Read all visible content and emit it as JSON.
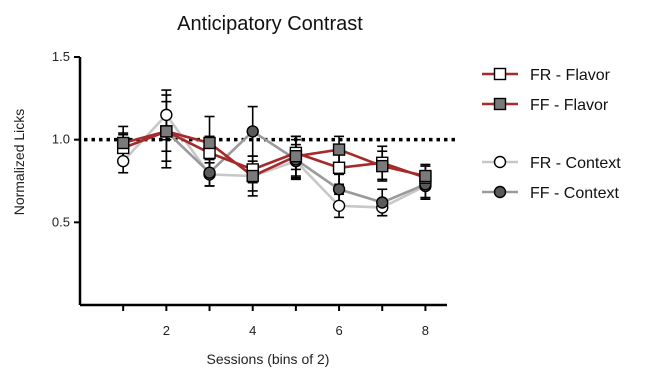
{
  "chart_data": {
    "type": "line",
    "title": "Anticipatory Contrast",
    "xlabel": "Sessions (bins of 2)",
    "ylabel": "Normalized Licks",
    "xlim": [
      0,
      8.5
    ],
    "ylim": [
      0,
      1.5
    ],
    "xticks": [
      2,
      4,
      6,
      8
    ],
    "yticks": [
      0.5,
      1.0,
      1.5
    ],
    "ytick_labels": [
      "0.5",
      "1.0",
      "1.5"
    ],
    "reference_line": 1.0,
    "legend_position": "right",
    "series": [
      {
        "name": "FR - Flavor",
        "line_color": "#a52a2a",
        "marker": "square",
        "marker_fill": "#ffffff",
        "x": [
          1,
          2,
          3,
          4,
          5,
          6,
          7,
          8
        ],
        "y": [
          0.95,
          1.05,
          0.92,
          0.82,
          0.92,
          0.83,
          0.86,
          0.77
        ],
        "err": [
          0.08,
          0.12,
          0.1,
          0.08,
          0.1,
          0.1,
          0.1,
          0.07
        ]
      },
      {
        "name": "FF - Flavor",
        "line_color": "#a52a2a",
        "marker": "square",
        "marker_fill": "#7a7a7a",
        "x": [
          1,
          2,
          3,
          4,
          5,
          6,
          7,
          8
        ],
        "y": [
          0.98,
          1.05,
          0.98,
          0.78,
          0.9,
          0.94,
          0.84,
          0.78
        ],
        "err": [
          0.1,
          0.18,
          0.16,
          0.12,
          0.12,
          0.08,
          0.09,
          0.07
        ]
      },
      {
        "name": "FR - Context",
        "line_color": "#c8c8c8",
        "marker": "circle",
        "marker_fill": "#ffffff",
        "x": [
          1,
          2,
          3,
          4,
          5,
          6,
          7,
          8
        ],
        "y": [
          0.87,
          1.15,
          0.79,
          0.78,
          0.87,
          0.6,
          0.59,
          0.72
        ],
        "err": [
          0.07,
          0.15,
          0.07,
          0.09,
          0.1,
          0.07,
          0.05,
          0.08
        ]
      },
      {
        "name": "FF - Context",
        "line_color": "#9a9a9a",
        "marker": "circle",
        "marker_fill": "#5a5a5a",
        "x": [
          1,
          2,
          3,
          4,
          5,
          6,
          7,
          8
        ],
        "y": [
          0.95,
          1.05,
          0.8,
          1.05,
          0.88,
          0.7,
          0.62,
          0.73
        ],
        "err": [
          0.09,
          0.22,
          0.08,
          0.15,
          0.12,
          0.09,
          0.08,
          0.08
        ]
      }
    ]
  }
}
